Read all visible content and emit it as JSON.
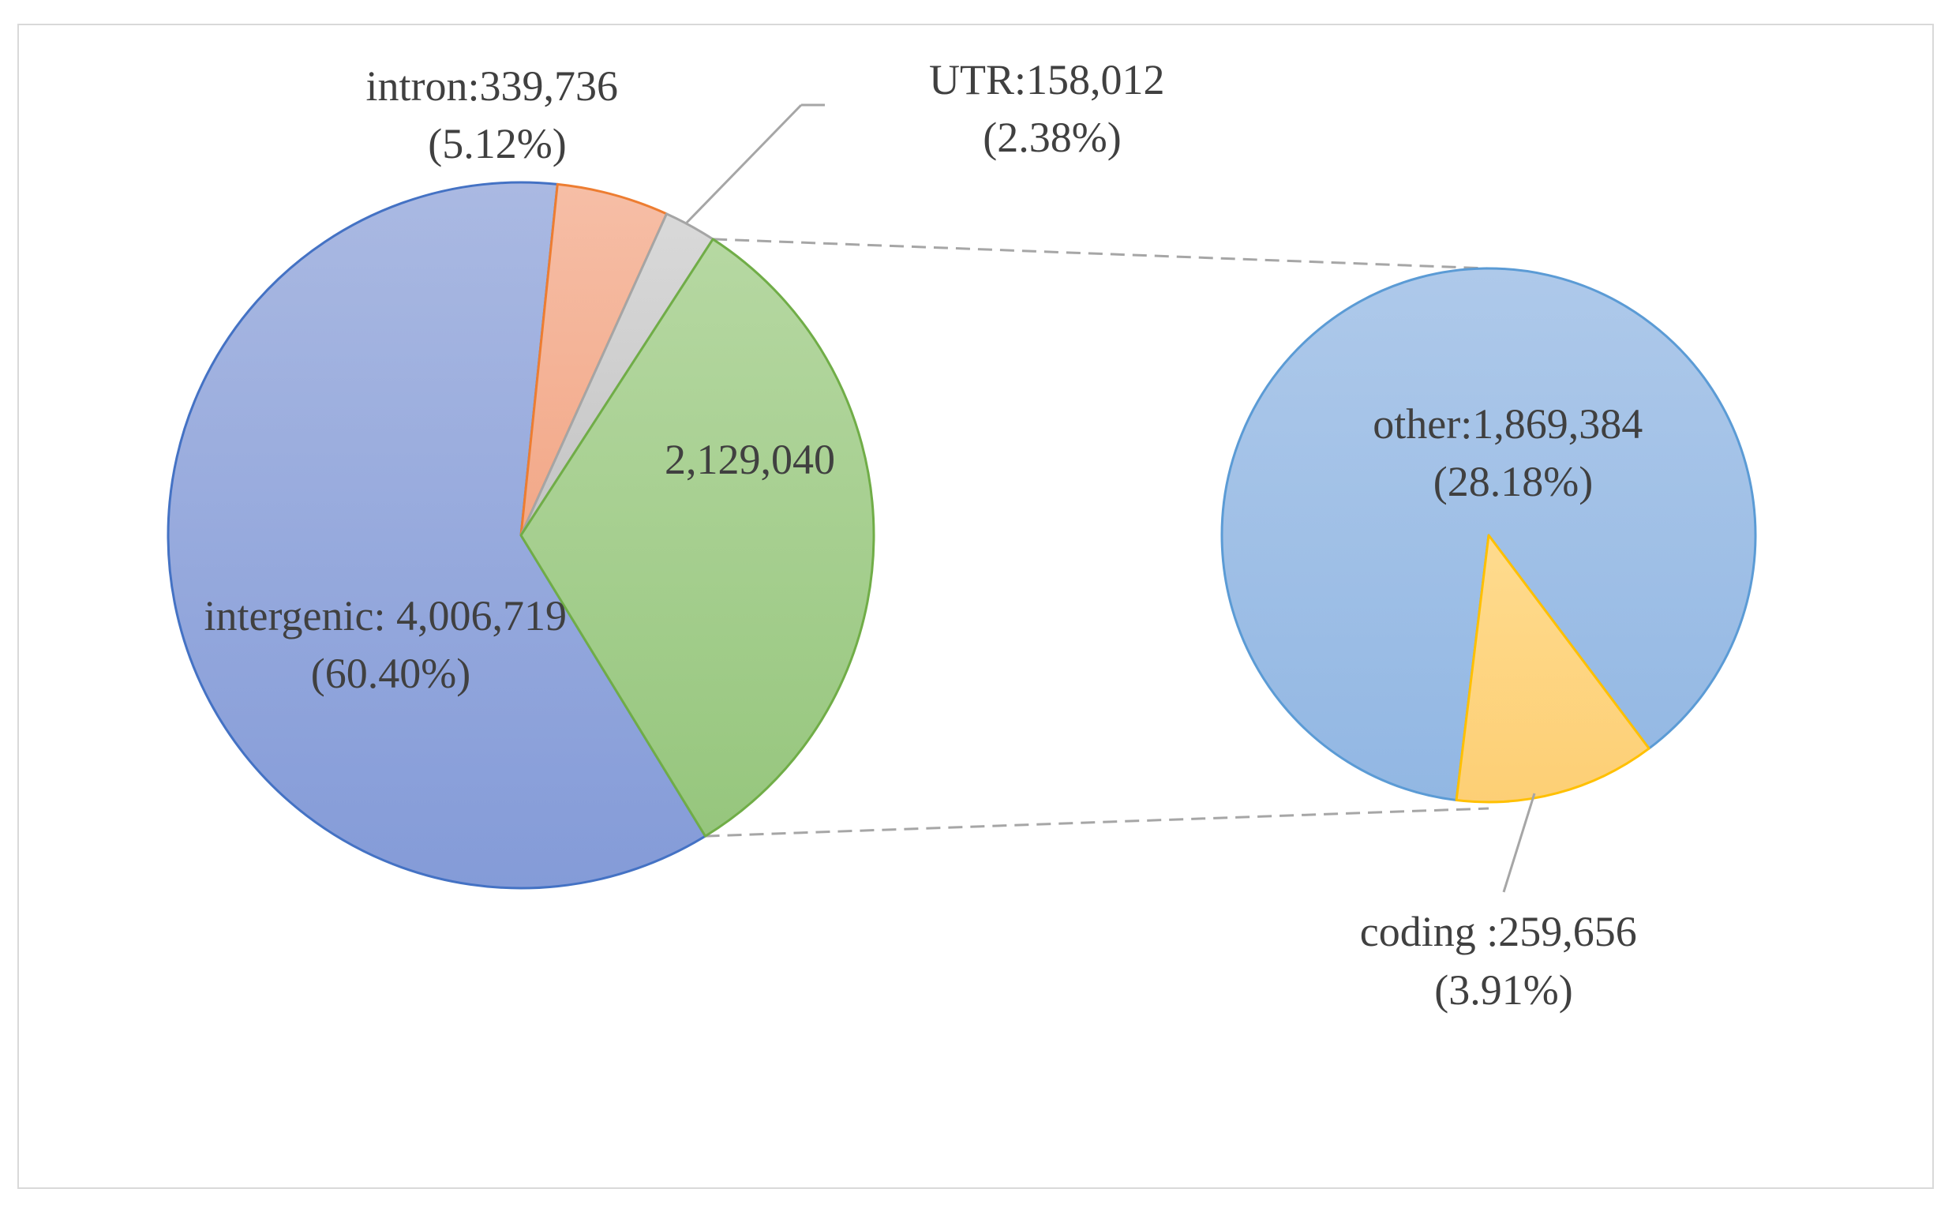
{
  "chart_data": {
    "type": "pie",
    "variant": "pie-of-pie",
    "main_pie": {
      "slices": [
        {
          "name": "intergenic",
          "value": 4006719,
          "percent": 60.4,
          "color": "#8aa0d9",
          "label_line1": "intergenic: 4,006,719",
          "label_line2": "(60.40%)"
        },
        {
          "name": "intron",
          "value": 339736,
          "percent": 5.12,
          "color": "#f4b095",
          "label_line1": "intron:339,736",
          "label_line2": "(5.12%)"
        },
        {
          "name": "UTR",
          "value": 158012,
          "percent": 2.38,
          "color": "#cfcfcf",
          "label_line1": "UTR:158,012",
          "label_line2": "(2.38%)"
        },
        {
          "name": "",
          "value": 2129040,
          "color": "#a3cd8c",
          "label_line1": "2,129,040",
          "label_line2": ""
        }
      ]
    },
    "secondary_pie": {
      "slices": [
        {
          "name": "other",
          "value": 1869384,
          "percent": 28.18,
          "color": "#9dbde6",
          "label_line1": "other:1,869,384",
          "label_line2": "(28.18%)"
        },
        {
          "name": "coding",
          "value": 259656,
          "percent": 3.91,
          "color": "#fdd37f",
          "label_line1": "coding :259,656",
          "label_line2": "(3.91%)"
        }
      ]
    },
    "legend": "none"
  }
}
